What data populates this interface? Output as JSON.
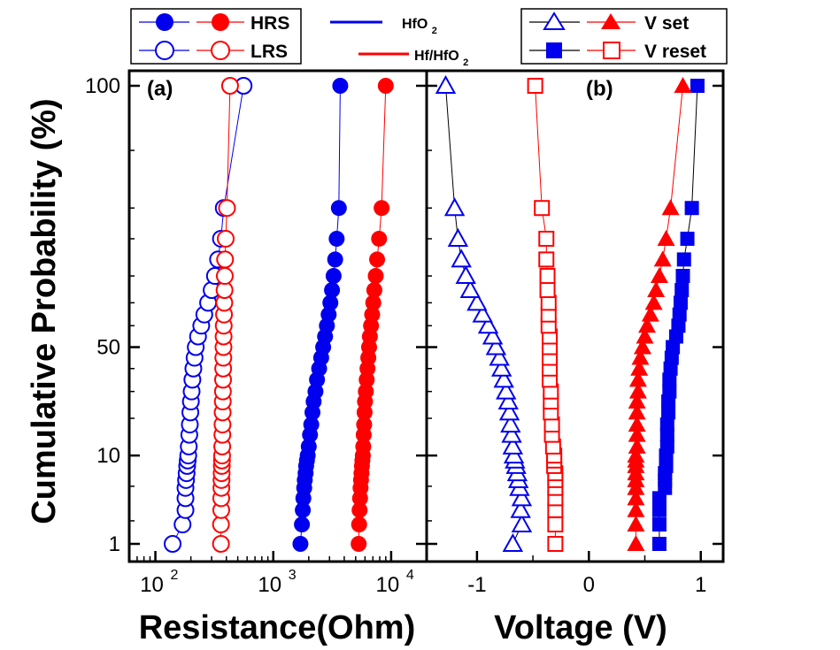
{
  "colors": {
    "blue": "#0000ee",
    "red": "#ff0000",
    "axis": "#000000"
  },
  "y_axis": {
    "label": "Cumulative Probability (%)",
    "scale": "probability",
    "range": [
      0.7,
      100
    ],
    "ticks": [
      "1",
      "10",
      "50",
      "100"
    ]
  },
  "legends": {
    "markers_a": {
      "filled": "HRS",
      "open": "LRS"
    },
    "lines": {
      "blue": "HfO2",
      "red": "Hf/HfO2"
    },
    "markers_b": {
      "set": "V set",
      "reset": "V reset"
    }
  },
  "chart_data": [
    {
      "type": "scatter",
      "panel_label": "(a)",
      "xlabel": "Resistance(Ohm)",
      "xscale": "log",
      "xlim": [
        60,
        20000
      ],
      "x_tick_labels": [
        "10",
        "10",
        "10"
      ],
      "x_tick_exponents": [
        "2",
        "3",
        "4"
      ],
      "ylabel": "Cumulative Probability (%)",
      "ylim": [
        1,
        100
      ],
      "grid": false,
      "series": [
        {
          "device": "HfO2",
          "state": "HRS",
          "color": "#0000ee",
          "marker": "circle-filled",
          "points": [
            [
              1700,
              1
            ],
            [
              1750,
              1.8
            ],
            [
              1780,
              2.7
            ],
            [
              1800,
              3.7
            ],
            [
              1830,
              4.8
            ],
            [
              1850,
              5.8
            ],
            [
              1880,
              6.8
            ],
            [
              1900,
              8
            ],
            [
              1930,
              9
            ],
            [
              1960,
              10
            ],
            [
              2000,
              12
            ],
            [
              2050,
              15
            ],
            [
              2100,
              18
            ],
            [
              2150,
              22
            ],
            [
              2200,
              26
            ],
            [
              2280,
              30
            ],
            [
              2350,
              35
            ],
            [
              2450,
              40
            ],
            [
              2550,
              45
            ],
            [
              2650,
              50
            ],
            [
              2750,
              55
            ],
            [
              2850,
              60
            ],
            [
              2950,
              65
            ],
            [
              3050,
              70
            ],
            [
              3150,
              75
            ],
            [
              3250,
              80
            ],
            [
              3350,
              85
            ],
            [
              3450,
              90
            ],
            [
              3600,
              95
            ],
            [
              3700,
              100
            ]
          ]
        },
        {
          "device": "HfO2",
          "state": "LRS",
          "color": "#0000ee",
          "marker": "circle-open",
          "points": [
            [
              140,
              1
            ],
            [
              170,
              1.8
            ],
            [
              180,
              2.7
            ],
            [
              180,
              3.7
            ],
            [
              180,
              4.8
            ],
            [
              182,
              5.8
            ],
            [
              184,
              6.8
            ],
            [
              186,
              8
            ],
            [
              188,
              9
            ],
            [
              190,
              10
            ],
            [
              192,
              12
            ],
            [
              194,
              15
            ],
            [
              196,
              18
            ],
            [
              198,
              22
            ],
            [
              200,
              26
            ],
            [
              203,
              30
            ],
            [
              206,
              35
            ],
            [
              210,
              40
            ],
            [
              215,
              45
            ],
            [
              220,
              50
            ],
            [
              230,
              55
            ],
            [
              245,
              60
            ],
            [
              260,
              65
            ],
            [
              280,
              70
            ],
            [
              300,
              75
            ],
            [
              320,
              80
            ],
            [
              340,
              85
            ],
            [
              360,
              90
            ],
            [
              380,
              95
            ],
            [
              560,
              100
            ]
          ]
        },
        {
          "device": "Hf/HfO2",
          "state": "HRS",
          "color": "#ff0000",
          "marker": "circle-filled",
          "points": [
            [
              5300,
              1
            ],
            [
              5350,
              1.8
            ],
            [
              5400,
              2.7
            ],
            [
              5450,
              3.7
            ],
            [
              5500,
              4.8
            ],
            [
              5550,
              5.8
            ],
            [
              5600,
              6.8
            ],
            [
              5650,
              8
            ],
            [
              5700,
              9
            ],
            [
              5750,
              10
            ],
            [
              5800,
              12
            ],
            [
              5850,
              15
            ],
            [
              5900,
              18
            ],
            [
              5950,
              22
            ],
            [
              6000,
              26
            ],
            [
              6100,
              30
            ],
            [
              6200,
              35
            ],
            [
              6300,
              40
            ],
            [
              6400,
              45
            ],
            [
              6500,
              50
            ],
            [
              6600,
              55
            ],
            [
              6750,
              60
            ],
            [
              6900,
              65
            ],
            [
              7050,
              70
            ],
            [
              7200,
              75
            ],
            [
              7400,
              80
            ],
            [
              7600,
              85
            ],
            [
              7900,
              90
            ],
            [
              8300,
              95
            ],
            [
              9000,
              100
            ]
          ]
        },
        {
          "device": "Hf/HfO2",
          "state": "LRS",
          "color": "#ff0000",
          "marker": "circle-open",
          "points": [
            [
              360,
              1
            ],
            [
              360,
              1.8
            ],
            [
              362,
              2.7
            ],
            [
              362,
              3.7
            ],
            [
              363,
              4.8
            ],
            [
              364,
              5.8
            ],
            [
              365,
              6.8
            ],
            [
              366,
              8
            ],
            [
              367,
              9
            ],
            [
              368,
              10
            ],
            [
              369,
              12
            ],
            [
              370,
              15
            ],
            [
              371,
              18
            ],
            [
              372,
              22
            ],
            [
              373,
              26
            ],
            [
              374,
              30
            ],
            [
              375,
              35
            ],
            [
              376,
              40
            ],
            [
              377,
              45
            ],
            [
              378,
              50
            ],
            [
              379,
              55
            ],
            [
              380,
              60
            ],
            [
              382,
              65
            ],
            [
              384,
              70
            ],
            [
              386,
              75
            ],
            [
              388,
              80
            ],
            [
              390,
              85
            ],
            [
              395,
              90
            ],
            [
              405,
              95
            ],
            [
              430,
              100
            ]
          ]
        }
      ]
    },
    {
      "type": "scatter",
      "panel_label": "(b)",
      "xlabel": "Voltage (V)",
      "xlim": [
        -1.45,
        1.2
      ],
      "x_ticks": [
        -1,
        0,
        1
      ],
      "x_tick_labels": [
        "-1",
        "0",
        "1"
      ],
      "ylim": [
        1,
        100
      ],
      "grid": false,
      "series": [
        {
          "device": "HfO2",
          "state": "V set",
          "color": "#0000ee",
          "marker": "triangle-open",
          "points": [
            [
              -0.68,
              1
            ],
            [
              -0.6,
              1.8
            ],
            [
              -0.61,
              2.7
            ],
            [
              -0.6,
              3.7
            ],
            [
              -0.62,
              4.8
            ],
            [
              -0.63,
              5.8
            ],
            [
              -0.64,
              6.8
            ],
            [
              -0.65,
              8
            ],
            [
              -0.66,
              9
            ],
            [
              -0.67,
              10
            ],
            [
              -0.68,
              12
            ],
            [
              -0.69,
              15
            ],
            [
              -0.7,
              18
            ],
            [
              -0.71,
              22
            ],
            [
              -0.72,
              26
            ],
            [
              -0.74,
              30
            ],
            [
              -0.76,
              35
            ],
            [
              -0.78,
              40
            ],
            [
              -0.8,
              45
            ],
            [
              -0.83,
              50
            ],
            [
              -0.86,
              55
            ],
            [
              -0.9,
              60
            ],
            [
              -0.95,
              65
            ],
            [
              -1.0,
              70
            ],
            [
              -1.06,
              75
            ],
            [
              -1.1,
              80
            ],
            [
              -1.14,
              85
            ],
            [
              -1.17,
              90
            ],
            [
              -1.2,
              95
            ],
            [
              -1.28,
              100
            ]
          ]
        },
        {
          "device": "HfO2",
          "state": "V reset",
          "color": "#0000ee",
          "marker": "square-filled",
          "points": [
            [
              0.63,
              1
            ],
            [
              0.63,
              1.8
            ],
            [
              0.63,
              2.7
            ],
            [
              0.63,
              3.7
            ],
            [
              0.68,
              4.8
            ],
            [
              0.68,
              5.8
            ],
            [
              0.68,
              6.8
            ],
            [
              0.69,
              8
            ],
            [
              0.69,
              9
            ],
            [
              0.69,
              10
            ],
            [
              0.7,
              12
            ],
            [
              0.7,
              15
            ],
            [
              0.7,
              18
            ],
            [
              0.71,
              22
            ],
            [
              0.71,
              26
            ],
            [
              0.72,
              30
            ],
            [
              0.72,
              35
            ],
            [
              0.73,
              40
            ],
            [
              0.74,
              45
            ],
            [
              0.75,
              50
            ],
            [
              0.78,
              55
            ],
            [
              0.8,
              60
            ],
            [
              0.81,
              65
            ],
            [
              0.82,
              70
            ],
            [
              0.83,
              75
            ],
            [
              0.84,
              80
            ],
            [
              0.85,
              85
            ],
            [
              0.88,
              90
            ],
            [
              0.92,
              95
            ],
            [
              0.97,
              100
            ]
          ]
        },
        {
          "device": "Hf/HfO2",
          "state": "V set",
          "color": "#ff0000",
          "marker": "triangle-filled",
          "points": [
            [
              0.42,
              1
            ],
            [
              0.42,
              1.8
            ],
            [
              0.42,
              2.7
            ],
            [
              0.42,
              3.7
            ],
            [
              0.42,
              4.8
            ],
            [
              0.42,
              5.8
            ],
            [
              0.42,
              6.8
            ],
            [
              0.42,
              8
            ],
            [
              0.42,
              9
            ],
            [
              0.42,
              10
            ],
            [
              0.43,
              12
            ],
            [
              0.43,
              15
            ],
            [
              0.43,
              18
            ],
            [
              0.43,
              22
            ],
            [
              0.43,
              26
            ],
            [
              0.44,
              30
            ],
            [
              0.44,
              35
            ],
            [
              0.45,
              40
            ],
            [
              0.46,
              45
            ],
            [
              0.48,
              50
            ],
            [
              0.5,
              55
            ],
            [
              0.52,
              60
            ],
            [
              0.55,
              65
            ],
            [
              0.58,
              70
            ],
            [
              0.6,
              75
            ],
            [
              0.63,
              80
            ],
            [
              0.66,
              85
            ],
            [
              0.69,
              90
            ],
            [
              0.73,
              95
            ],
            [
              0.84,
              100
            ]
          ]
        },
        {
          "device": "Hf/HfO2",
          "state": "V reset",
          "color": "#ff0000",
          "marker": "square-open",
          "points": [
            [
              -0.3,
              1
            ],
            [
              -0.3,
              1.8
            ],
            [
              -0.3,
              2.7
            ],
            [
              -0.3,
              3.7
            ],
            [
              -0.3,
              4.8
            ],
            [
              -0.3,
              5.8
            ],
            [
              -0.3,
              6.8
            ],
            [
              -0.31,
              8
            ],
            [
              -0.31,
              9
            ],
            [
              -0.31,
              10
            ],
            [
              -0.32,
              12
            ],
            [
              -0.33,
              15
            ],
            [
              -0.33,
              18
            ],
            [
              -0.34,
              22
            ],
            [
              -0.34,
              26
            ],
            [
              -0.34,
              30
            ],
            [
              -0.35,
              35
            ],
            [
              -0.35,
              40
            ],
            [
              -0.35,
              45
            ],
            [
              -0.35,
              50
            ],
            [
              -0.35,
              55
            ],
            [
              -0.36,
              60
            ],
            [
              -0.36,
              65
            ],
            [
              -0.36,
              70
            ],
            [
              -0.37,
              75
            ],
            [
              -0.37,
              80
            ],
            [
              -0.38,
              85
            ],
            [
              -0.38,
              90
            ],
            [
              -0.42,
              95
            ],
            [
              -0.48,
              100
            ]
          ]
        }
      ]
    }
  ]
}
